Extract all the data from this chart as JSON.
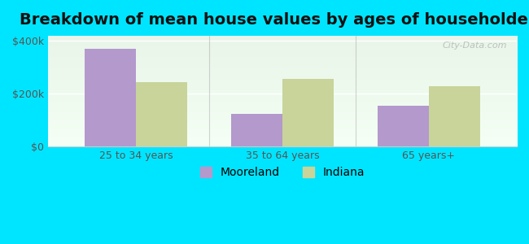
{
  "title": "Breakdown of mean house values by ages of householders",
  "categories": [
    "25 to 34 years",
    "35 to 64 years",
    "65 years+"
  ],
  "mooreland_values": [
    370000,
    125000,
    155000
  ],
  "indiana_values": [
    245000,
    255000,
    230000
  ],
  "mooreland_color": "#b399cc",
  "indiana_color": "#c8d49a",
  "background_outer": "#00e5ff",
  "background_inner_top": "#e8f5e8",
  "background_inner_bottom": "#f8fff8",
  "ylim": [
    0,
    420000
  ],
  "yticks": [
    0,
    200000,
    400000
  ],
  "ytick_labels": [
    "$0",
    "$200k",
    "$400k"
  ],
  "bar_width": 0.35,
  "legend_labels": [
    "Mooreland",
    "Indiana"
  ],
  "title_fontsize": 14,
  "legend_fontsize": 10,
  "tick_fontsize": 9,
  "watermark": "City-Data.com"
}
